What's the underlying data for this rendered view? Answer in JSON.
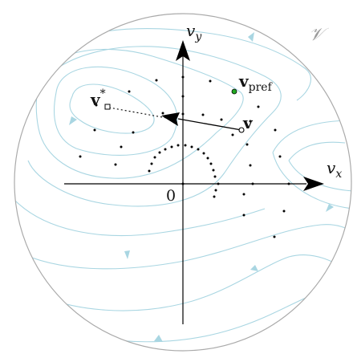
{
  "labels": {
    "vy": "v",
    "vy_sub": "y",
    "vx": "v",
    "vx_sub": "x",
    "origin": "0",
    "set": "𝒱",
    "v": "v",
    "v_pref": "v",
    "v_pref_sub": "pref",
    "v_star": "v",
    "v_star_sup": "*"
  },
  "colors": {
    "contour": "#a9d6e2",
    "axis": "#000000",
    "disk_border": "#aaaaaa",
    "point": "#000000",
    "pref_marker": "#22aa22"
  },
  "icons": {
    "v_pref_marker": "green-dot",
    "v_star_marker": "square-marker",
    "v_marker": "hollow-circle"
  }
}
